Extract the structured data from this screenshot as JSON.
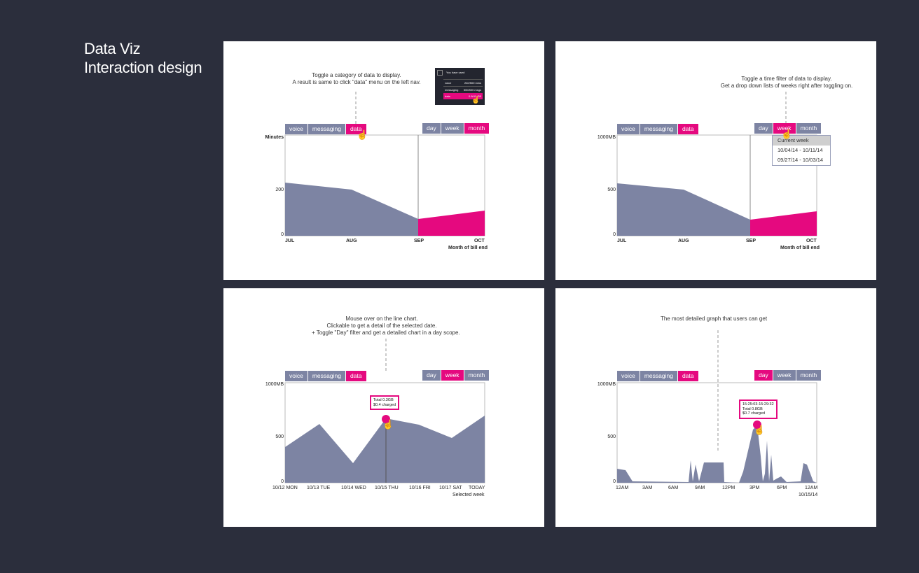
{
  "header": {
    "title_line1": "Data Viz",
    "title_line2": "Interaction design"
  },
  "category_tabs": [
    "voice",
    "messaging",
    "data"
  ],
  "time_tabs": [
    "day",
    "week",
    "month"
  ],
  "colors": {
    "accent": "#e5097f",
    "series": "#7d84a3",
    "background": "#2b2e3c"
  },
  "icons": {
    "cursor": "hand-pointer-icon"
  },
  "panel1": {
    "note_line1": "Toggle a category of data to display.",
    "note_line2": "A result is same to click \"data\" menu on the left nav.",
    "mini_header": "You have used",
    "mini_rows": [
      {
        "label": "voice",
        "value": "240/500 mins"
      },
      {
        "label": "messaging",
        "value": "500/500 msgs"
      },
      {
        "label": "data",
        "value": "0.8/41 GB"
      }
    ],
    "y_unit": "Minutes",
    "y_ticks": [
      "200",
      "0"
    ],
    "x_ticks": [
      "JUL",
      "AUG",
      "SEP",
      "OCT"
    ],
    "x_title": "Month of bill end"
  },
  "panel2": {
    "note_line1": "Toggle a time filter of data to display.",
    "note_line2": "Get a drop down lists of weeks right after toggling on.",
    "y_ticks": [
      "1000MB",
      "500",
      "0"
    ],
    "x_ticks": [
      "JUL",
      "AUG",
      "SEP",
      "OCT"
    ],
    "x_title": "Month of bill end",
    "dropdown": [
      "Current week",
      "10/04/14 - 10/11/14",
      "09/27/14 - 10/03/14"
    ]
  },
  "panel3": {
    "note_line1": "Mouse over on the line chart.",
    "note_line2": "Clickable to get a detail of the selected date.",
    "note_line3": "+ Toggle \"Day\" filter and get a detailed chart in a day scope.",
    "y_ticks": [
      "1000MB",
      "500",
      "0"
    ],
    "x_ticks": [
      "10/12 MON",
      "10/13 TUE",
      "10/14 WED",
      "10/15 THU",
      "10/16 FRI",
      "10/17 SAT",
      "TODAY"
    ],
    "x_title": "Selected week",
    "tooltip_line1": "Total 0.3GB",
    "tooltip_line2": "$0.4 charged"
  },
  "panel4": {
    "note_line1": "The most detailed graph that users can get",
    "y_ticks": [
      "1000MB",
      "500",
      "0"
    ],
    "x_ticks": [
      "12AM",
      "3AM",
      "6AM",
      "9AM",
      "12PM",
      "3PM",
      "6PM",
      "12AM"
    ],
    "x_title": "10/15/14",
    "tooltip_line1": "15:25:03-15:29:32",
    "tooltip_line2": "Total 0.8GB",
    "tooltip_line3": "$0.7 charged"
  }
}
